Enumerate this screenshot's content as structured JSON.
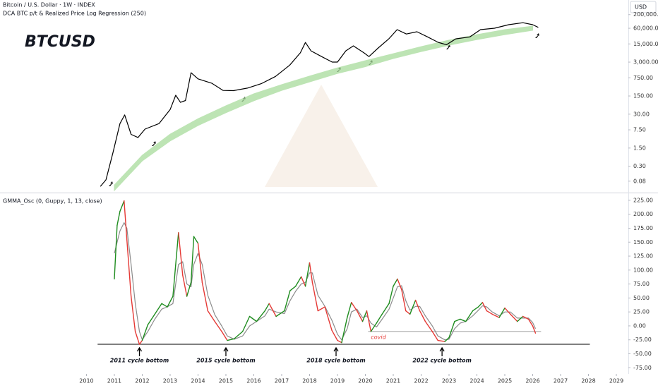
{
  "chart_data": [
    {
      "type": "line",
      "title": "Bitcoin / U.S. Dollar · 1W · INDEX",
      "subtitle": "DCA BTC p/t & Realized Price Log Regression (250)",
      "annotation": "BTCUSD",
      "y_label": "USD",
      "log_scale": true,
      "xlim": [
        2006.9,
        2029.43
      ],
      "ylim": [
        0.031,
        730000
      ],
      "yticks": [
        {
          "value": 200000,
          "label": "200,000.00"
        },
        {
          "value": 60000,
          "label": "60,000.00"
        },
        {
          "value": 15000,
          "label": "15,000.00"
        },
        {
          "value": 3000,
          "label": "3,000.00"
        },
        {
          "value": 750,
          "label": "750.00"
        },
        {
          "value": 150,
          "label": "150.00"
        },
        {
          "value": 30,
          "label": "30.00"
        },
        {
          "value": 7.5,
          "label": "7.50"
        },
        {
          "value": 1.5,
          "label": "1.50"
        },
        {
          "value": 0.3,
          "label": "0.30"
        },
        {
          "value": 0.08,
          "label": "0.08"
        }
      ],
      "x": [
        2010.5,
        2010.7,
        2010.96,
        2011.2,
        2011.37,
        2011.6,
        2011.85,
        2012.1,
        2012.6,
        2013.0,
        2013.2,
        2013.37,
        2013.55,
        2013.75,
        2014.0,
        2014.5,
        2014.9,
        2015.27,
        2015.77,
        2016.28,
        2016.78,
        2017.29,
        2017.67,
        2017.85,
        2018.05,
        2018.43,
        2018.81,
        2019.0,
        2019.3,
        2019.57,
        2019.95,
        2020.13,
        2020.46,
        2020.84,
        2021.14,
        2021.47,
        2021.85,
        2022.23,
        2022.61,
        2022.91,
        2023.24,
        2023.75,
        2024.13,
        2024.63,
        2025.14,
        2025.65,
        2026.0,
        2026.2
      ],
      "series": [
        {
          "color": "#000000",
          "values": [
            0.05,
            0.09,
            1.1,
            13,
            28,
            5,
            3.8,
            8,
            13,
            45,
            160,
            85,
            100,
            1170,
            680,
            460,
            245,
            240,
            300,
            450,
            850,
            2300,
            6800,
            17000,
            8100,
            4900,
            3000,
            3000,
            8100,
            12600,
            6800,
            4900,
            10500,
            23500,
            53000,
            36000,
            44000,
            28000,
            17300,
            14000,
            23500,
            28000,
            53000,
            60000,
            82000,
            98000,
            82000,
            65000
          ]
        }
      ],
      "band": {
        "color": "#a8dc9c",
        "x": [
          2011,
          2012,
          2013,
          2014,
          2015,
          2016,
          2017,
          2018,
          2019,
          2020,
          2021,
          2022,
          2023,
          2024,
          2025,
          2026
        ],
        "lower": [
          0.035,
          0.48,
          2.8,
          11,
          34,
          98,
          245,
          520,
          1100,
          2000,
          4100,
          7600,
          13400,
          22000,
          34000,
          50000
        ],
        "upper": [
          0.057,
          0.79,
          5.1,
          20,
          63,
          182,
          410,
          870,
          1800,
          3400,
          6300,
          11800,
          21000,
          34000,
          53000,
          72000
        ]
      }
    },
    {
      "type": "line",
      "title": "GMMA_Osc (0, Guppy, 1, 13, close)",
      "xlim": [
        2006.9,
        2029.43
      ],
      "ylim": [
        -86,
        235
      ],
      "xticks": [
        2010,
        2011,
        2012,
        2013,
        2014,
        2015,
        2016,
        2017,
        2018,
        2019,
        2020,
        2021,
        2022,
        2023,
        2024,
        2025,
        2026,
        2027,
        2028,
        2029
      ],
      "yticks": [
        {
          "value": 225,
          "label": "225.00"
        },
        {
          "value": 200,
          "label": "200.00"
        },
        {
          "value": 175,
          "label": "175.00"
        },
        {
          "value": 150,
          "label": "150.00"
        },
        {
          "value": 125,
          "label": "125.00"
        },
        {
          "value": 100,
          "label": "100.00"
        },
        {
          "value": 75,
          "label": "75.00"
        },
        {
          "value": 50,
          "label": "50.00"
        },
        {
          "value": 25,
          "label": "25.00"
        },
        {
          "value": 0,
          "label": "0.00"
        },
        {
          "value": -25,
          "label": "-25.00"
        },
        {
          "value": -50,
          "label": "-50.00"
        },
        {
          "value": -75,
          "label": "-75.00"
        }
      ],
      "x": [
        2011.0,
        2011.1,
        2011.2,
        2011.35,
        2011.45,
        2011.6,
        2011.75,
        2011.9,
        2012.0,
        2012.2,
        2012.45,
        2012.7,
        2012.9,
        2013.1,
        2013.3,
        2013.45,
        2013.6,
        2013.75,
        2013.85,
        2014.0,
        2014.15,
        2014.35,
        2014.6,
        2014.85,
        2015.05,
        2015.3,
        2015.6,
        2015.85,
        2016.1,
        2016.4,
        2016.55,
        2016.8,
        2017.1,
        2017.3,
        2017.5,
        2017.7,
        2017.85,
        2018.0,
        2018.1,
        2018.3,
        2018.55,
        2018.8,
        2019.0,
        2019.15,
        2019.35,
        2019.5,
        2019.7,
        2019.9,
        2020.05,
        2020.2,
        2020.4,
        2020.6,
        2020.85,
        2021.0,
        2021.15,
        2021.3,
        2021.45,
        2021.6,
        2021.8,
        2021.95,
        2022.15,
        2022.4,
        2022.6,
        2022.85,
        2023.0,
        2023.2,
        2023.4,
        2023.6,
        2023.85,
        2024.05,
        2024.2,
        2024.35,
        2024.55,
        2024.8,
        2025.0,
        2025.2,
        2025.45,
        2025.65,
        2025.85,
        2026.0,
        2026.1
      ],
      "series": [
        {
          "color": "#8c8c8c",
          "values": [
            130,
            150,
            170,
            185,
            175,
            110,
            40,
            -10,
            -25,
            -10,
            12,
            30,
            34,
            40,
            110,
            115,
            75,
            70,
            110,
            130,
            110,
            55,
            20,
            0,
            -18,
            -24,
            -18,
            0,
            8,
            18,
            30,
            25,
            22,
            45,
            62,
            75,
            78,
            95,
            95,
            55,
            35,
            10,
            -15,
            -25,
            -5,
            25,
            30,
            15,
            18,
            5,
            -2,
            12,
            30,
            50,
            70,
            72,
            45,
            28,
            35,
            35,
            18,
            0,
            -18,
            -25,
            -24,
            -5,
            5,
            8,
            18,
            28,
            36,
            34,
            25,
            18,
            25,
            25,
            14,
            14,
            14,
            6,
            -5
          ]
        },
        {
          "color": "#1e8c1e",
          "color_below": "#e53935",
          "values": [
            84,
            180,
            205,
            224,
            154,
            53,
            -10,
            -33,
            -26,
            2,
            21,
            40,
            34,
            53,
            167,
            91,
            53,
            78,
            160,
            148,
            78,
            27,
            8,
            -10,
            -26,
            -23,
            -10,
            17,
            8,
            27,
            40,
            17,
            27,
            63,
            71,
            88,
            71,
            113,
            78,
            27,
            34,
            -8,
            -26,
            -30,
            15,
            42,
            27,
            8,
            27,
            -10,
            5,
            21,
            40,
            71,
            84,
            65,
            27,
            21,
            46,
            27,
            8,
            -10,
            -26,
            -28,
            -21,
            8,
            12,
            8,
            27,
            34,
            42,
            27,
            21,
            15,
            32,
            21,
            8,
            17,
            12,
            0,
            -13
          ]
        }
      ],
      "hlines": [
        {
          "value": -33,
          "x": [
            2010.4,
            2028.05
          ],
          "color": "#000000"
        },
        {
          "value": -10,
          "x": [
            2020.1,
            2026.3
          ],
          "color": "#9e9e9e"
        }
      ],
      "annotations": [
        {
          "text": "2011 cycle bottom",
          "x": 2011.9
        },
        {
          "text": "2015 cycle bottom",
          "x": 2015.0
        },
        {
          "text": "2018 cycle bottom",
          "x": 2018.95
        },
        {
          "text": "2022 cycle bottom",
          "x": 2022.75
        },
        {
          "text": "covid",
          "x": 2020.2,
          "value": -20,
          "color": "#e53935"
        }
      ]
    }
  ]
}
